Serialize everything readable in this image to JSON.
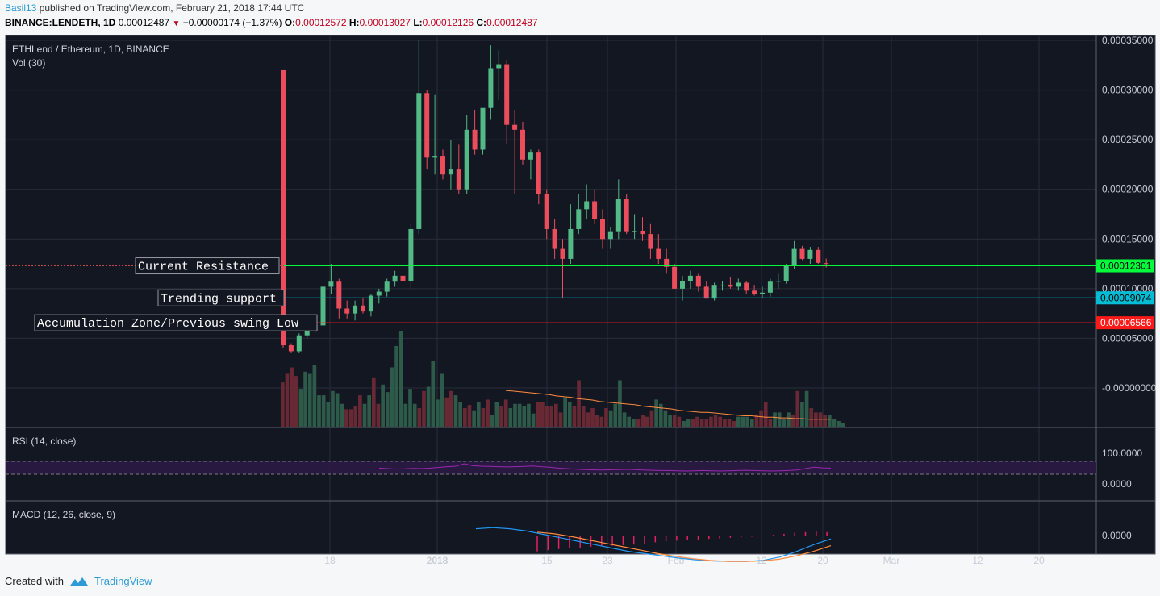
{
  "header": {
    "user": "Basil13",
    "published": "published on TradingView.com, February 21, 2018 17:44 UTC",
    "symbol": "BINANCE:LENDETH, 1D",
    "last": "0.00012487",
    "change": "−0.00000174 (−1.37%)",
    "o_label": "O:",
    "o": "0.00012572",
    "h_label": "H:",
    "h": "0.00013027",
    "l_label": "L:",
    "l": "0.00012126",
    "c_label": "C:",
    "c": "0.00012487"
  },
  "footer": {
    "created": "Created with",
    "brand": "TradingView"
  },
  "colors": {
    "bg": "#131722",
    "grid": "#2a2e39",
    "up": "#53b987",
    "down": "#eb4d5c",
    "resistance": "#00ff3a",
    "support": "#00bcd4",
    "accumulation": "#ff1a1a",
    "vol_ma": "#ff8a3d",
    "rsi": "#9c27b0",
    "macd": "#2196f3",
    "signal": "#ff8a3d"
  },
  "chart_data": {
    "type": "candlestick",
    "main_legend": "ETHLend / Ethereum, 1D, BINANCE",
    "vol_legend": "Vol (30)",
    "rsi_legend": "RSI (14, close)",
    "macd_legend": "MACD (12, 26, close, 9)",
    "x_ticks": [
      "18",
      "2018",
      "15",
      "23",
      "Feb",
      "12",
      "20",
      "Mar",
      "12",
      "20"
    ],
    "y_ticks": [
      "0.00035000",
      "0.00030000",
      "0.00025000",
      "0.00020000",
      "0.00015000",
      "0.00010000",
      "0.00005000",
      "-0.00000000"
    ],
    "rsi_ticks": [
      "100.0000",
      "0.0000"
    ],
    "macd_ticks": [
      "0.0000"
    ],
    "ylim": [
      -1.8e-07,
      0.00035
    ],
    "levels": [
      {
        "label": "Current Resistance",
        "value": 0.00012301,
        "tag": "0.00012301",
        "color_key": "resistance"
      },
      {
        "label": "Trending support",
        "value": 9.074e-05,
        "tag": "0.00009074",
        "color_key": "support"
      },
      {
        "label": "Accumulation Zone/Previous swing Low",
        "value": 6.566e-05,
        "tag": "0.00006566",
        "color_key": "accumulation"
      }
    ],
    "candles": [
      [
        0.00032,
        0.00032,
        4e-05,
        4.3e-05
      ],
      [
        4.3e-05,
        4.5e-05,
        3.5e-05,
        3.7e-05
      ],
      [
        3.7e-05,
        5.5e-05,
        3.5e-05,
        5.3e-05
      ],
      [
        5.3e-05,
        6e-05,
        5e-05,
        5.8e-05
      ],
      [
        5.8e-05,
        6.8e-05,
        5.5e-05,
        6.3e-05
      ],
      [
        6.3e-05,
        0.000105,
        6e-05,
        0.000102
      ],
      [
        0.000102,
        0.000125,
        9.5e-05,
        0.000107
      ],
      [
        0.000107,
        0.00011,
        7e-05,
        8e-05
      ],
      [
        8e-05,
        8.8e-05,
        7e-05,
        7.5e-05
      ],
      [
        7.5e-05,
        8.8e-05,
        6.8e-05,
        8.3e-05
      ],
      [
        8.3e-05,
        9e-05,
        7.5e-05,
        7.7e-05
      ],
      [
        7.7e-05,
        9.5e-05,
        7.2e-05,
        9.3e-05
      ],
      [
        9.3e-05,
        0.0001,
        8.5e-05,
        9.7e-05
      ],
      [
        9.7e-05,
        0.00011,
        9.2e-05,
        0.000107
      ],
      [
        0.000107,
        0.000118,
        0.000102,
        0.000113
      ],
      [
        0.000113,
        0.000118,
        0.0001,
        0.000108
      ],
      [
        0.000108,
        0.000165,
        0.0001,
        0.00016
      ],
      [
        0.00016,
        0.00035,
        0.000155,
        0.000297
      ],
      [
        0.000297,
        0.0003,
        0.00022,
        0.000232
      ],
      [
        0.000232,
        0.000295,
        0.000215,
        0.000233
      ],
      [
        0.000233,
        0.00024,
        0.00021,
        0.000215
      ],
      [
        0.000215,
        0.00025,
        0.0002,
        0.00022
      ],
      [
        0.00022,
        0.000245,
        0.000195,
        0.0002
      ],
      [
        0.0002,
        0.000275,
        0.000195,
        0.00026
      ],
      [
        0.00026,
        0.00028,
        0.000235,
        0.00024
      ],
      [
        0.00024,
        0.00028,
        0.000235,
        0.000282
      ],
      [
        0.000282,
        0.000345,
        0.00027,
        0.000322
      ],
      [
        0.000322,
        0.00034,
        0.00029,
        0.000326
      ],
      [
        0.000326,
        0.00033,
        0.000245,
        0.000265
      ],
      [
        0.000265,
        0.00028,
        0.000195,
        0.00026
      ],
      [
        0.00026,
        0.000268,
        0.000225,
        0.00023
      ],
      [
        0.00023,
        0.00024,
        0.00021,
        0.000237
      ],
      [
        0.000237,
        0.00024,
        0.000185,
        0.000195
      ],
      [
        0.000195,
        0.0002,
        0.00015,
        0.00016
      ],
      [
        0.00016,
        0.00017,
        0.00013,
        0.00014
      ],
      [
        0.00014,
        0.00015,
        9e-05,
        0.00013
      ],
      [
        0.00013,
        0.000185,
        0.000125,
        0.00016
      ],
      [
        0.00016,
        0.000195,
        0.000155,
        0.00018
      ],
      [
        0.00018,
        0.000205,
        0.00017,
        0.000188
      ],
      [
        0.000188,
        0.0002,
        0.000165,
        0.00017
      ],
      [
        0.00017,
        0.00018,
        0.00014,
        0.00015
      ],
      [
        0.00015,
        0.000162,
        0.00014,
        0.000157
      ],
      [
        0.000157,
        0.00021,
        0.00015,
        0.00019
      ],
      [
        0.00019,
        0.000195,
        0.000155,
        0.000157
      ],
      [
        0.000157,
        0.000175,
        0.00015,
        0.000158
      ],
      [
        0.000158,
        0.000172,
        0.000148,
        0.000155
      ],
      [
        0.000155,
        0.000165,
        0.00013,
        0.00014
      ],
      [
        0.00014,
        0.000155,
        0.000125,
        0.00013
      ],
      [
        0.00013,
        0.00014,
        0.000115,
        0.000122
      ],
      [
        0.000122,
        0.000125,
        0.0001,
        0.0001
      ],
      [
        0.0001,
        0.000113,
        8.8e-05,
        0.000108
      ],
      [
        0.000108,
        0.000118,
        0.0001,
        0.000113
      ],
      [
        0.000113,
        0.000115,
        9.7e-05,
        0.000102
      ],
      [
        0.000102,
        0.000108,
        9e-05,
        9e-05
      ],
      [
        9e-05,
        0.000106,
        8.8e-05,
        0.000103
      ],
      [
        0.000103,
        0.000108,
        9.8e-05,
        0.000104
      ],
      [
        0.000104,
        0.000112,
        0.0001,
        0.000102
      ],
      [
        0.000102,
        0.00011,
        9.8e-05,
        0.000106
      ],
      [
        0.000106,
        0.000108,
        9.5e-05,
        9.8e-05
      ],
      [
        9.8e-05,
        0.000103,
        9.3e-05,
        9.5e-05
      ],
      [
        9.5e-05,
        0.000102,
        9e-05,
        9.6e-05
      ],
      [
        9.6e-05,
        0.00011,
        9.2e-05,
        0.000107
      ],
      [
        0.000107,
        0.000115,
        0.0001,
        0.000108
      ],
      [
        0.000108,
        0.000125,
        0.000105,
        0.000124
      ],
      [
        0.000124,
        0.000148,
        0.00012,
        0.00014
      ],
      [
        0.00014,
        0.000143,
        0.000128,
        0.00013
      ],
      [
        0.00013,
        0.000142,
        0.000125,
        0.000139
      ],
      [
        0.000139,
        0.000142,
        0.000125,
        0.000126
      ],
      [
        0.00012572,
        0.00013027,
        0.00012126,
        0.00012487
      ]
    ],
    "volume": [
      42,
      50,
      56,
      48,
      36,
      52,
      50,
      58,
      30,
      30,
      24,
      34,
      32,
      22,
      17,
      17,
      20,
      30,
      22,
      30,
      46,
      22,
      40,
      33,
      56,
      76,
      90,
      22,
      36,
      22,
      18,
      34,
      38,
      62,
      26,
      50,
      28,
      34,
      30,
      24,
      18,
      21,
      16,
      24,
      18,
      26,
      12,
      24,
      20,
      26,
      18,
      22,
      22,
      20,
      22,
      13,
      24,
      24,
      20,
      20,
      22,
      14,
      28,
      24,
      20,
      44,
      20,
      14,
      18,
      12,
      10,
      18,
      16,
      22,
      44,
      14,
      10,
      8,
      8,
      12,
      10,
      16,
      26,
      22,
      16,
      12,
      12,
      10,
      6,
      8,
      8,
      10,
      8,
      8,
      10,
      12,
      10,
      8,
      8,
      6,
      10,
      10,
      10,
      8,
      12,
      16,
      24,
      8,
      14,
      14,
      8,
      14,
      12,
      34,
      24,
      34,
      18,
      14,
      14,
      12,
      12,
      8,
      6,
      4
    ],
    "vol_ma": [
      54,
      53,
      52,
      51,
      50,
      49,
      48,
      46,
      45,
      44,
      42,
      41,
      40,
      38,
      37,
      36,
      35,
      34,
      33,
      31,
      30,
      29,
      28,
      27,
      25,
      24,
      23,
      22,
      22,
      21,
      20,
      19,
      18,
      17,
      17,
      16,
      15,
      15,
      14,
      14,
      13,
      13,
      12,
      12,
      12,
      12
    ],
    "rsi": [
      52,
      50,
      48,
      49,
      51,
      50,
      52,
      55,
      58,
      60,
      70,
      62,
      60,
      59,
      58,
      57,
      58,
      59,
      61,
      58,
      56,
      52,
      50,
      48,
      46,
      45,
      44,
      45,
      46,
      47,
      46,
      44,
      43,
      42,
      42,
      41,
      40,
      41,
      42,
      41,
      40,
      41,
      42,
      43,
      42,
      41,
      40,
      41,
      42,
      44,
      50,
      56,
      53,
      52
    ],
    "macd_line": [
      0.6,
      0.7,
      0.6,
      0.4,
      0.1,
      -0.2,
      -0.5,
      -0.8,
      -1.1,
      -1.4,
      -1.6,
      -1.8,
      -2.0,
      -2.15,
      -2.25,
      -2.3,
      -2.3,
      -2.2,
      -1.9,
      -1.4,
      -0.8,
      -0.3
    ],
    "signal_line": [
      0.3,
      0.15,
      -0.1,
      -0.4,
      -0.7,
      -1.0,
      -1.3,
      -1.6,
      -1.85,
      -2.05,
      -2.2,
      -2.3,
      -2.3,
      -2.25,
      -2.1,
      -1.8,
      -1.4,
      -0.9
    ],
    "macd_hist": [
      -1.4,
      -1.3,
      -1.2,
      -1.15,
      -1.1,
      -1.0,
      -0.95,
      -0.9,
      -0.85,
      -0.8,
      -0.7,
      -0.6,
      -0.5,
      -0.45,
      -0.4,
      -0.35,
      -0.3,
      -0.25,
      -0.2,
      -0.15,
      -0.1,
      -0.05,
      0.05,
      0.15,
      0.25,
      0.3,
      0.35,
      0.3
    ]
  }
}
